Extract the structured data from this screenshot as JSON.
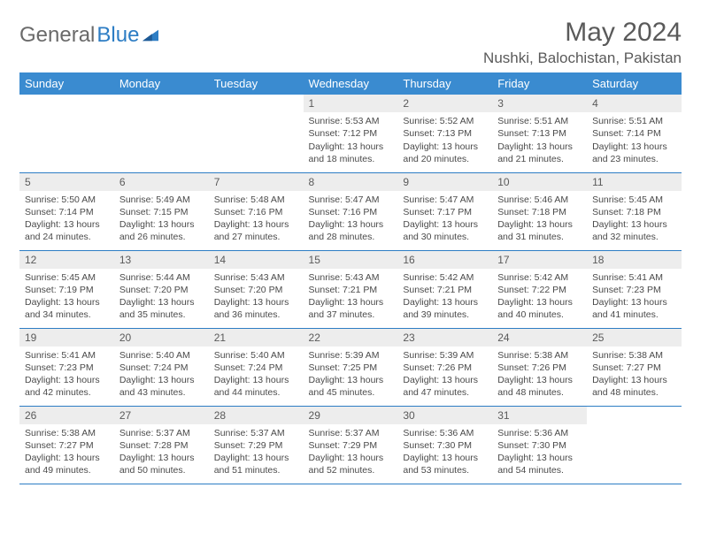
{
  "brand": {
    "part1": "General",
    "part2": "Blue"
  },
  "title": "May 2024",
  "location": "Nushki, Balochistan, Pakistan",
  "colors": {
    "header_bg": "#3a8bd0",
    "header_fg": "#ffffff",
    "daynum_bg": "#ededed",
    "border": "#2d7dc4",
    "text": "#4a4a4a",
    "brand_gray": "#6a6a6a",
    "brand_blue": "#2d7dc4"
  },
  "weekdays": [
    "Sunday",
    "Monday",
    "Tuesday",
    "Wednesday",
    "Thursday",
    "Friday",
    "Saturday"
  ],
  "weeks": [
    [
      null,
      null,
      null,
      {
        "n": "1",
        "sr": "5:53 AM",
        "ss": "7:12 PM",
        "dl": "13 hours and 18 minutes."
      },
      {
        "n": "2",
        "sr": "5:52 AM",
        "ss": "7:13 PM",
        "dl": "13 hours and 20 minutes."
      },
      {
        "n": "3",
        "sr": "5:51 AM",
        "ss": "7:13 PM",
        "dl": "13 hours and 21 minutes."
      },
      {
        "n": "4",
        "sr": "5:51 AM",
        "ss": "7:14 PM",
        "dl": "13 hours and 23 minutes."
      }
    ],
    [
      {
        "n": "5",
        "sr": "5:50 AM",
        "ss": "7:14 PM",
        "dl": "13 hours and 24 minutes."
      },
      {
        "n": "6",
        "sr": "5:49 AM",
        "ss": "7:15 PM",
        "dl": "13 hours and 26 minutes."
      },
      {
        "n": "7",
        "sr": "5:48 AM",
        "ss": "7:16 PM",
        "dl": "13 hours and 27 minutes."
      },
      {
        "n": "8",
        "sr": "5:47 AM",
        "ss": "7:16 PM",
        "dl": "13 hours and 28 minutes."
      },
      {
        "n": "9",
        "sr": "5:47 AM",
        "ss": "7:17 PM",
        "dl": "13 hours and 30 minutes."
      },
      {
        "n": "10",
        "sr": "5:46 AM",
        "ss": "7:18 PM",
        "dl": "13 hours and 31 minutes."
      },
      {
        "n": "11",
        "sr": "5:45 AM",
        "ss": "7:18 PM",
        "dl": "13 hours and 32 minutes."
      }
    ],
    [
      {
        "n": "12",
        "sr": "5:45 AM",
        "ss": "7:19 PM",
        "dl": "13 hours and 34 minutes."
      },
      {
        "n": "13",
        "sr": "5:44 AM",
        "ss": "7:20 PM",
        "dl": "13 hours and 35 minutes."
      },
      {
        "n": "14",
        "sr": "5:43 AM",
        "ss": "7:20 PM",
        "dl": "13 hours and 36 minutes."
      },
      {
        "n": "15",
        "sr": "5:43 AM",
        "ss": "7:21 PM",
        "dl": "13 hours and 37 minutes."
      },
      {
        "n": "16",
        "sr": "5:42 AM",
        "ss": "7:21 PM",
        "dl": "13 hours and 39 minutes."
      },
      {
        "n": "17",
        "sr": "5:42 AM",
        "ss": "7:22 PM",
        "dl": "13 hours and 40 minutes."
      },
      {
        "n": "18",
        "sr": "5:41 AM",
        "ss": "7:23 PM",
        "dl": "13 hours and 41 minutes."
      }
    ],
    [
      {
        "n": "19",
        "sr": "5:41 AM",
        "ss": "7:23 PM",
        "dl": "13 hours and 42 minutes."
      },
      {
        "n": "20",
        "sr": "5:40 AM",
        "ss": "7:24 PM",
        "dl": "13 hours and 43 minutes."
      },
      {
        "n": "21",
        "sr": "5:40 AM",
        "ss": "7:24 PM",
        "dl": "13 hours and 44 minutes."
      },
      {
        "n": "22",
        "sr": "5:39 AM",
        "ss": "7:25 PM",
        "dl": "13 hours and 45 minutes."
      },
      {
        "n": "23",
        "sr": "5:39 AM",
        "ss": "7:26 PM",
        "dl": "13 hours and 47 minutes."
      },
      {
        "n": "24",
        "sr": "5:38 AM",
        "ss": "7:26 PM",
        "dl": "13 hours and 48 minutes."
      },
      {
        "n": "25",
        "sr": "5:38 AM",
        "ss": "7:27 PM",
        "dl": "13 hours and 48 minutes."
      }
    ],
    [
      {
        "n": "26",
        "sr": "5:38 AM",
        "ss": "7:27 PM",
        "dl": "13 hours and 49 minutes."
      },
      {
        "n": "27",
        "sr": "5:37 AM",
        "ss": "7:28 PM",
        "dl": "13 hours and 50 minutes."
      },
      {
        "n": "28",
        "sr": "5:37 AM",
        "ss": "7:29 PM",
        "dl": "13 hours and 51 minutes."
      },
      {
        "n": "29",
        "sr": "5:37 AM",
        "ss": "7:29 PM",
        "dl": "13 hours and 52 minutes."
      },
      {
        "n": "30",
        "sr": "5:36 AM",
        "ss": "7:30 PM",
        "dl": "13 hours and 53 minutes."
      },
      {
        "n": "31",
        "sr": "5:36 AM",
        "ss": "7:30 PM",
        "dl": "13 hours and 54 minutes."
      },
      null
    ]
  ],
  "labels": {
    "sunrise": "Sunrise:",
    "sunset": "Sunset:",
    "daylight": "Daylight:"
  }
}
